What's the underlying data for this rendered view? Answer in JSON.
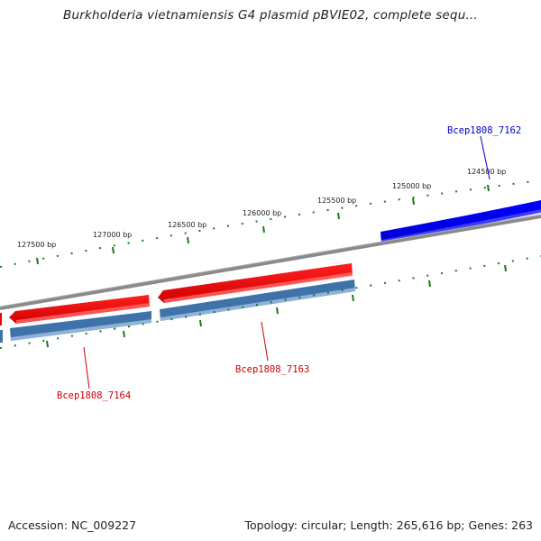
{
  "title": "Burkholderia vietnamiensis G4 plasmid pBVIE02, complete sequ...",
  "footer": {
    "accession": "Accession: NC_009227",
    "topology": "Topology: circular; Length: 265,616 bp; Genes: 263"
  },
  "bp_labels": [
    "127500 bp",
    "127000 bp",
    "126500 bp",
    "126000 bp",
    "125500 bp",
    "125000 bp",
    "124500 bp"
  ],
  "genes": [
    {
      "name": "Bcep1808_7162",
      "color": "#0000cc"
    },
    {
      "name": "Bcep1808_7163",
      "color": "#cc0000"
    },
    {
      "name": "Bcep1808_7164",
      "color": "#cc0000"
    }
  ],
  "colors": {
    "forward_gene": "#0000ff",
    "reverse_gene": "#ee0000",
    "cds_feature": "#3a6fa8",
    "backbone": "#888888",
    "ticks": "#1a7a1a"
  }
}
